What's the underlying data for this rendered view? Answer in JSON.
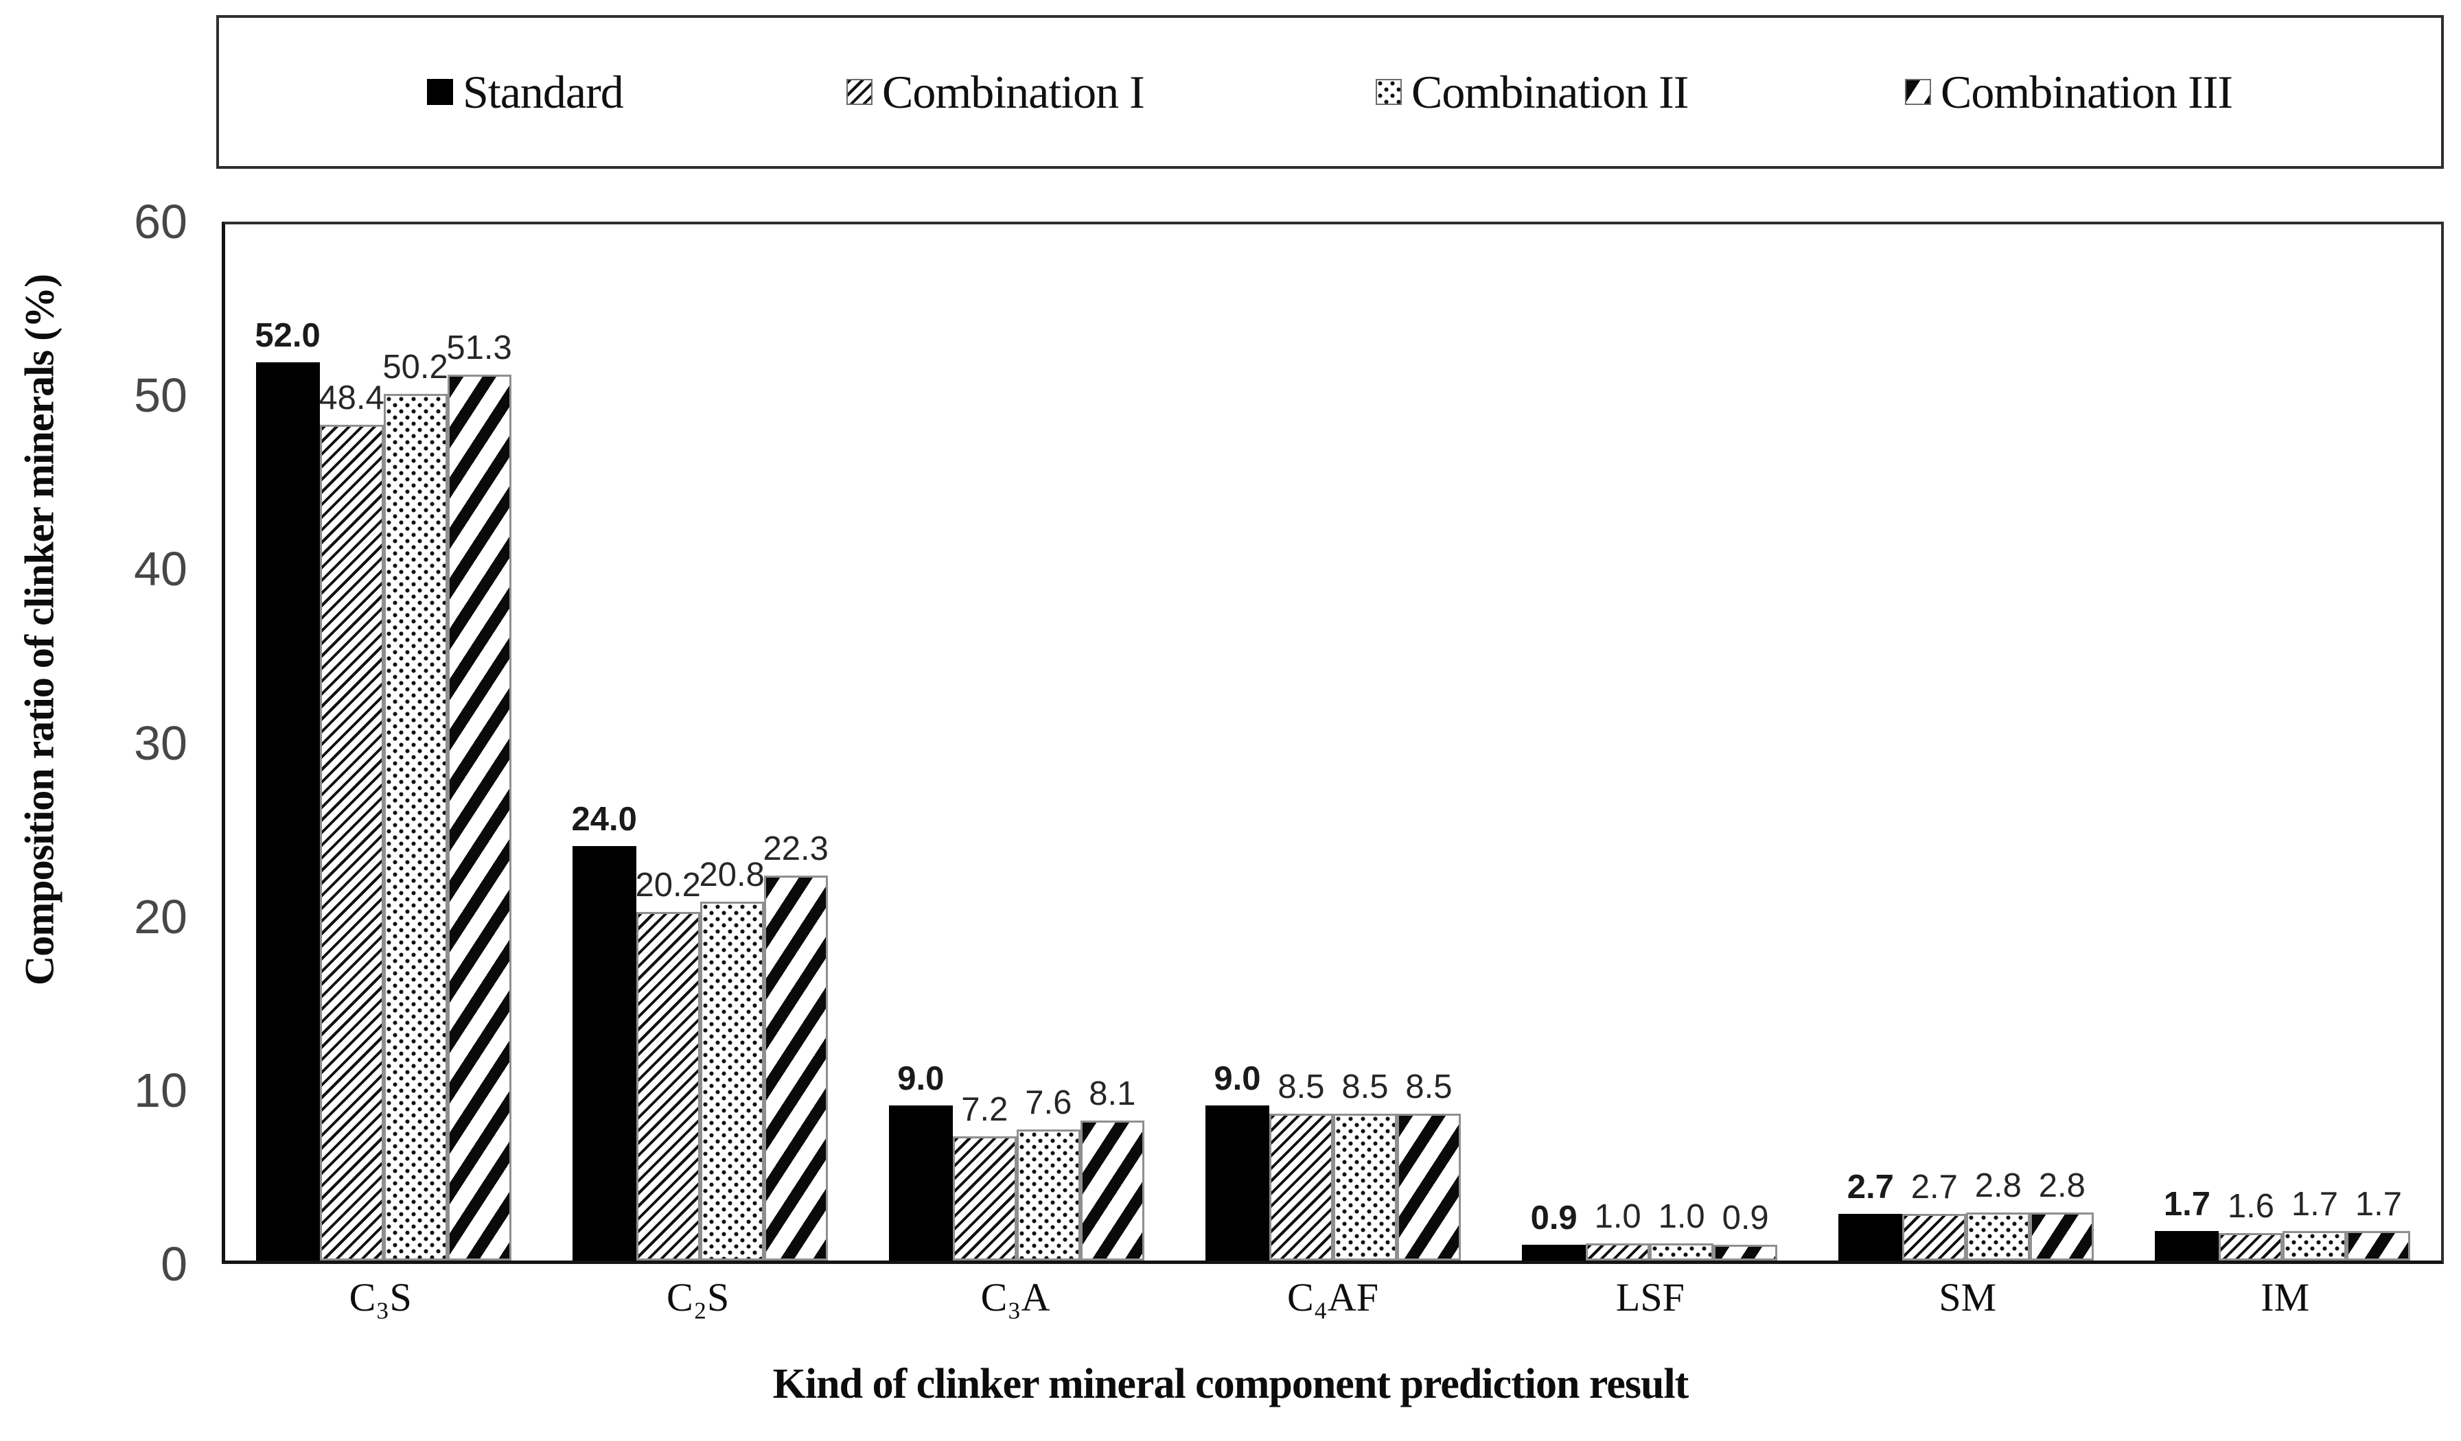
{
  "legend": {
    "items": [
      {
        "label": "Standard",
        "pattern": "solid"
      },
      {
        "label": "Combination I",
        "pattern": "hatch-thin"
      },
      {
        "label": "Combination II",
        "pattern": "dots"
      },
      {
        "label": "Combination III",
        "pattern": "hatch-bold"
      }
    ]
  },
  "chart_data": {
    "type": "bar",
    "title": "",
    "categories": [
      "C₃S",
      "C₂S",
      "C₃A",
      "C₄AF",
      "LSF",
      "SM",
      "IM"
    ],
    "series": [
      {
        "name": "Standard",
        "pattern": "solid",
        "values": [
          52.0,
          24.0,
          9.0,
          9.0,
          0.9,
          2.7,
          1.7
        ]
      },
      {
        "name": "Combination I",
        "pattern": "hatch-thin",
        "values": [
          48.4,
          20.2,
          7.2,
          8.5,
          1.0,
          2.7,
          1.6
        ]
      },
      {
        "name": "Combination II",
        "pattern": "dots",
        "values": [
          50.2,
          20.8,
          7.6,
          8.5,
          1.0,
          2.8,
          1.7
        ]
      },
      {
        "name": "Combination III",
        "pattern": "hatch-bold",
        "values": [
          51.3,
          22.3,
          8.1,
          8.5,
          0.9,
          2.8,
          1.7
        ]
      }
    ],
    "xlabel": "Kind of clinker mineral component prediction result",
    "ylabel": "Composition ratio of clinker minerals (%)",
    "ylim": [
      0,
      60
    ],
    "yticks": [
      0,
      10,
      20,
      30,
      40,
      50,
      60
    ],
    "grid": false,
    "legend_position": "top",
    "value_label_decimals": 1
  },
  "colors": {
    "bar_fill": "#000000",
    "value_label": "#262626",
    "tick_label": "#474747",
    "axis_line": "#141414"
  }
}
